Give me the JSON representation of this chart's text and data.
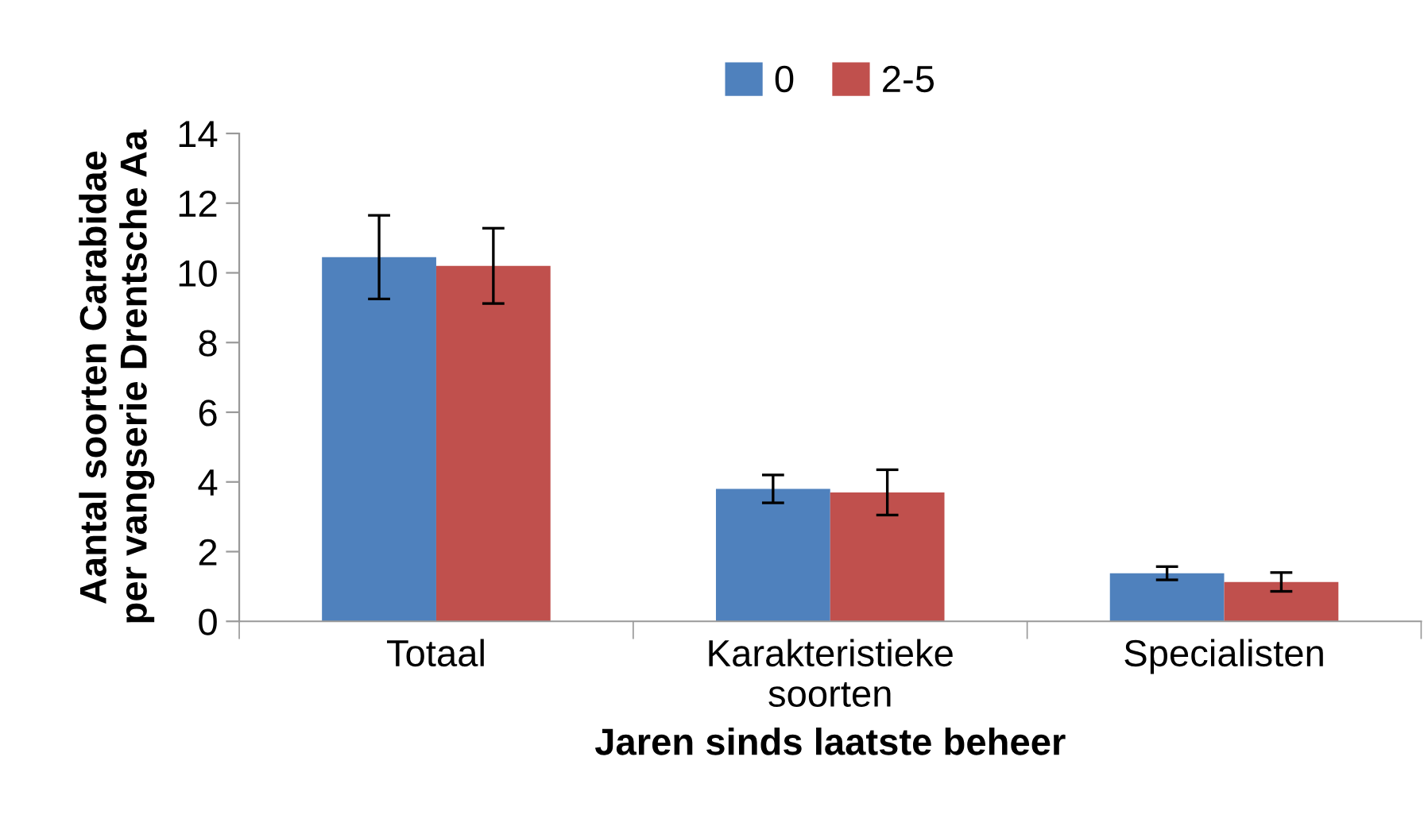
{
  "chart_data": {
    "type": "bar",
    "xlabel": "Jaren sinds laatste beheer",
    "ylabel": "Aantal soorten Carabidae\nper vangserie Drentsche Aa",
    "categories": [
      "Totaal",
      "Karakteristieke\nsoorten",
      "Specialisten"
    ],
    "series": [
      {
        "name": "0",
        "color": "#4f81bd",
        "values": [
          10.45,
          3.8,
          1.38
        ],
        "errors": [
          1.2,
          0.4,
          0.19
        ]
      },
      {
        "name": "2-5",
        "color": "#c0504d",
        "values": [
          10.2,
          3.7,
          1.13
        ],
        "errors": [
          1.08,
          0.65,
          0.27
        ]
      }
    ],
    "ylim": [
      0,
      14
    ],
    "yticks": [
      0,
      2,
      4,
      6,
      8,
      10,
      12,
      14
    ],
    "grid": false,
    "legend": "top"
  }
}
